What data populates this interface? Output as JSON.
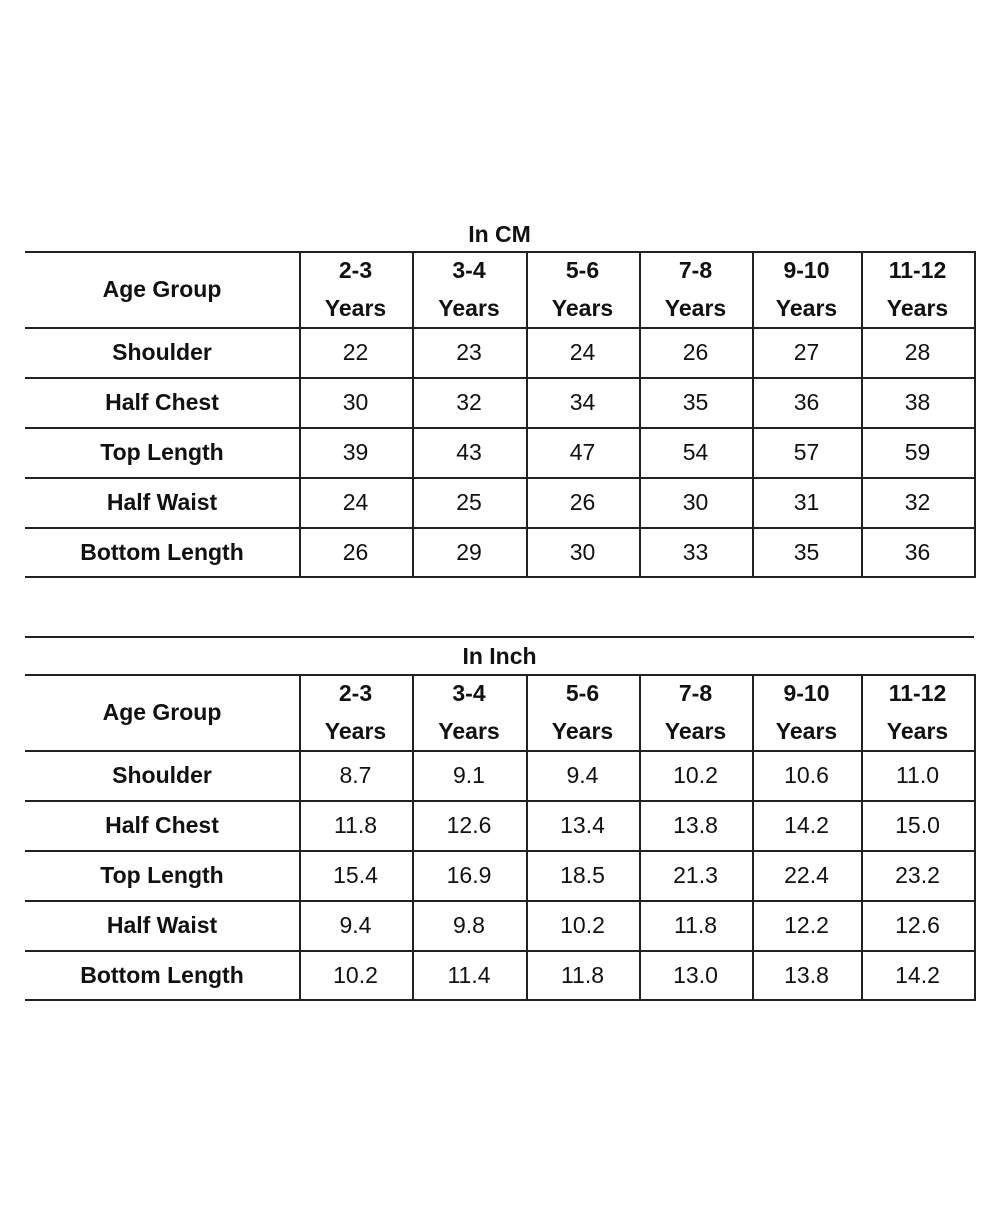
{
  "tables": [
    {
      "title": "In CM",
      "header": [
        "Age Group",
        "2-3 Years",
        "3-4 Years",
        "5-6 Years",
        "7-8 Years",
        "9-10 Years",
        "11-12 Years"
      ],
      "rows": [
        [
          "Shoulder",
          "22",
          "23",
          "24",
          "26",
          "27",
          "28"
        ],
        [
          "Half Chest",
          "30",
          "32",
          "34",
          "35",
          "36",
          "38"
        ],
        [
          "Top Length",
          "39",
          "43",
          "47",
          "54",
          "57",
          "59"
        ],
        [
          "Half Waist",
          "24",
          "25",
          "26",
          "30",
          "31",
          "32"
        ],
        [
          "Bottom Length",
          "26",
          "29",
          "30",
          "33",
          "35",
          "36"
        ]
      ]
    },
    {
      "title": "In Inch",
      "header": [
        "Age Group",
        "2-3 Years",
        "3-4 Years",
        "5-6 Years",
        "7-8 Years",
        "9-10 Years",
        "11-12 Years"
      ],
      "rows": [
        [
          "Shoulder",
          "8.7",
          "9.1",
          "9.4",
          "10.2",
          "10.6",
          "11.0"
        ],
        [
          "Half Chest",
          "11.8",
          "12.6",
          "13.4",
          "13.8",
          "14.2",
          "15.0"
        ],
        [
          "Top Length",
          "15.4",
          "16.9",
          "18.5",
          "21.3",
          "22.4",
          "23.2"
        ],
        [
          "Half Waist",
          "9.4",
          "9.8",
          "10.2",
          "11.8",
          "12.2",
          "12.6"
        ],
        [
          "Bottom Length",
          "10.2",
          "11.4",
          "11.8",
          "13.0",
          "13.8",
          "14.2"
        ]
      ]
    }
  ]
}
